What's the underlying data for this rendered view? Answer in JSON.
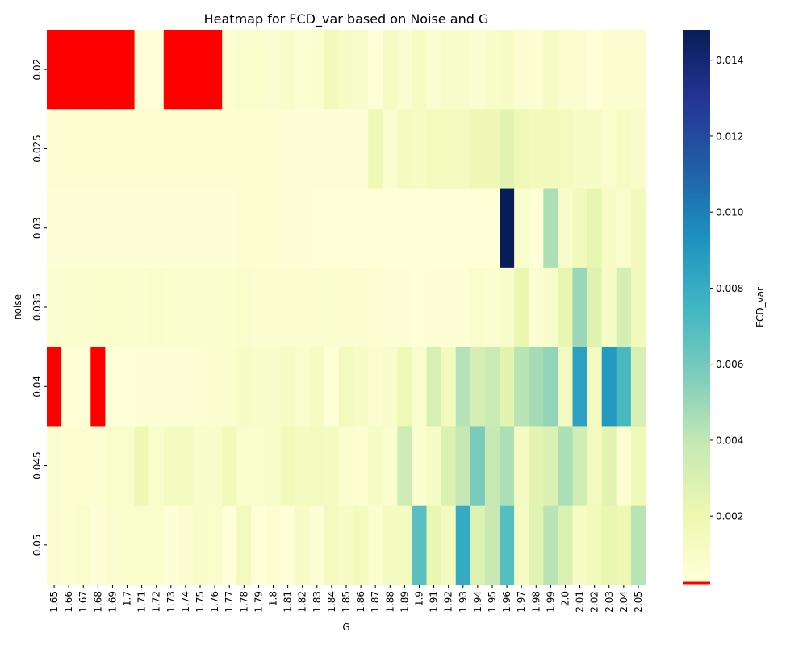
{
  "chart_data": {
    "type": "heatmap",
    "title": "Heatmap for FCD_var based on Noise and G",
    "xlabel": "G",
    "ylabel": "noise",
    "colorbar_label": "FCD_var",
    "colormap": "YlGnBu",
    "missing_color": "#ff0000",
    "x": [
      "1.65",
      "1.66",
      "1.67",
      "1.68",
      "1.69",
      "1.7",
      "1.71",
      "1.72",
      "1.73",
      "1.74",
      "1.75",
      "1.76",
      "1.77",
      "1.78",
      "1.79",
      "1.8",
      "1.81",
      "1.82",
      "1.83",
      "1.84",
      "1.85",
      "1.86",
      "1.87",
      "1.88",
      "1.89",
      "1.9",
      "1.91",
      "1.92",
      "1.93",
      "1.94",
      "1.95",
      "1.96",
      "1.97",
      "1.98",
      "1.99",
      "2.0",
      "2.01",
      "2.02",
      "2.03",
      "2.04",
      "2.05"
    ],
    "y": [
      "0.02",
      "0.025",
      "0.03",
      "0.035",
      "0.04",
      "0.045",
      "0.05"
    ],
    "colorbar_ticks": [
      0.002,
      0.004,
      0.006,
      0.008,
      0.01,
      0.012,
      0.014
    ],
    "colorbar_tick_labels": [
      "0.002",
      "0.004",
      "0.006",
      "0.008",
      "0.010",
      "0.012",
      "0.014"
    ],
    "vmin": 0.0002,
    "vmax": 0.0148,
    "values": [
      [
        null,
        null,
        null,
        null,
        null,
        null,
        0.0003,
        0.0003,
        null,
        null,
        null,
        null,
        0.0005,
        0.0008,
        0.0008,
        0.0006,
        0.0009,
        0.0005,
        0.0007,
        0.0016,
        0.001,
        0.0009,
        0.0003,
        0.0012,
        0.0006,
        0.0012,
        0.0006,
        0.0009,
        0.0009,
        0.0006,
        0.0009,
        0.001,
        0.0006,
        0.0005,
        0.0012,
        0.0006,
        0.0006,
        0.0003,
        0.0006,
        0.0006,
        0.0006
      ],
      [
        0.0005,
        0.0005,
        0.0005,
        0.0005,
        0.0005,
        0.0005,
        0.0005,
        0.0005,
        0.0005,
        0.0005,
        0.0005,
        0.0005,
        0.0005,
        0.0005,
        0.0005,
        0.0005,
        0.0004,
        0.0004,
        0.0004,
        0.0004,
        0.0004,
        0.0004,
        0.0018,
        0.0006,
        0.0013,
        0.0012,
        0.0015,
        0.0015,
        0.0014,
        0.0019,
        0.0019,
        0.0025,
        0.0018,
        0.0016,
        0.0016,
        0.0015,
        0.001,
        0.0011,
        0.0008,
        0.0012,
        0.0009
      ],
      [
        0.0004,
        0.0004,
        0.0004,
        0.0004,
        0.0004,
        0.0004,
        0.0004,
        0.0004,
        0.0004,
        0.0004,
        0.0004,
        0.0004,
        0.0004,
        0.0005,
        0.0005,
        0.0005,
        0.0004,
        0.0004,
        0.0003,
        0.0003,
        0.0003,
        0.0003,
        0.0003,
        0.0003,
        0.0003,
        0.0003,
        0.0003,
        0.0003,
        0.0003,
        0.0003,
        0.0003,
        0.0148,
        0.0008,
        0.0003,
        0.0045,
        0.0009,
        0.0016,
        0.0023,
        0.001,
        0.0008,
        0.0016
      ],
      [
        0.0007,
        0.0007,
        0.0007,
        0.0007,
        0.0008,
        0.0007,
        0.0007,
        0.0008,
        0.0007,
        0.0007,
        0.0007,
        0.0007,
        0.0007,
        0.0008,
        0.0006,
        0.0006,
        0.0006,
        0.0006,
        0.0006,
        0.0007,
        0.0006,
        0.0006,
        0.0005,
        0.0004,
        0.0004,
        0.0003,
        0.0004,
        0.0004,
        0.0004,
        0.0008,
        0.0006,
        0.0009,
        0.0022,
        0.0006,
        0.0009,
        0.0023,
        0.005,
        0.0027,
        0.0011,
        0.0032,
        0.0016
      ],
      [
        null,
        0.0003,
        0.0003,
        null,
        0.0003,
        0.0003,
        0.0004,
        0.0004,
        0.0004,
        0.0004,
        0.0005,
        0.0006,
        0.0007,
        0.001,
        0.0009,
        0.0009,
        0.0011,
        0.0008,
        0.0012,
        0.0003,
        0.0015,
        0.001,
        0.0006,
        0.0009,
        0.0018,
        0.0008,
        0.0031,
        0.0015,
        0.0043,
        0.0032,
        0.0036,
        0.0025,
        0.0042,
        0.0047,
        0.0052,
        0.0014,
        0.0086,
        0.0014,
        0.0089,
        0.0073,
        0.0031
      ],
      [
        0.0007,
        0.0005,
        0.0005,
        0.0005,
        0.0008,
        0.0008,
        0.0019,
        0.0008,
        0.0013,
        0.0013,
        0.0009,
        0.0009,
        0.0016,
        0.0008,
        0.0008,
        0.0009,
        0.0016,
        0.0013,
        0.0014,
        0.0013,
        0.0007,
        0.0005,
        0.0011,
        0.0007,
        0.0035,
        0.0007,
        0.0011,
        0.0029,
        0.0039,
        0.0058,
        0.0038,
        0.0045,
        0.0013,
        0.0025,
        0.0029,
        0.0045,
        0.0034,
        0.0014,
        0.0025,
        0.0006,
        0.0018
      ],
      [
        0.0006,
        0.0005,
        0.0008,
        0.0004,
        0.0006,
        0.0008,
        0.0008,
        0.0008,
        0.0004,
        0.0006,
        0.0009,
        0.0008,
        0.0002,
        0.0015,
        0.0003,
        0.0005,
        0.0003,
        0.001,
        0.0004,
        0.0014,
        0.001,
        0.0015,
        0.0007,
        0.0013,
        0.0013,
        0.0068,
        0.0022,
        0.0014,
        0.0081,
        0.0028,
        0.0038,
        0.0069,
        0.0012,
        0.0026,
        0.0042,
        0.0029,
        0.0011,
        0.0016,
        0.0022,
        0.0019,
        0.0042
      ]
    ]
  }
}
